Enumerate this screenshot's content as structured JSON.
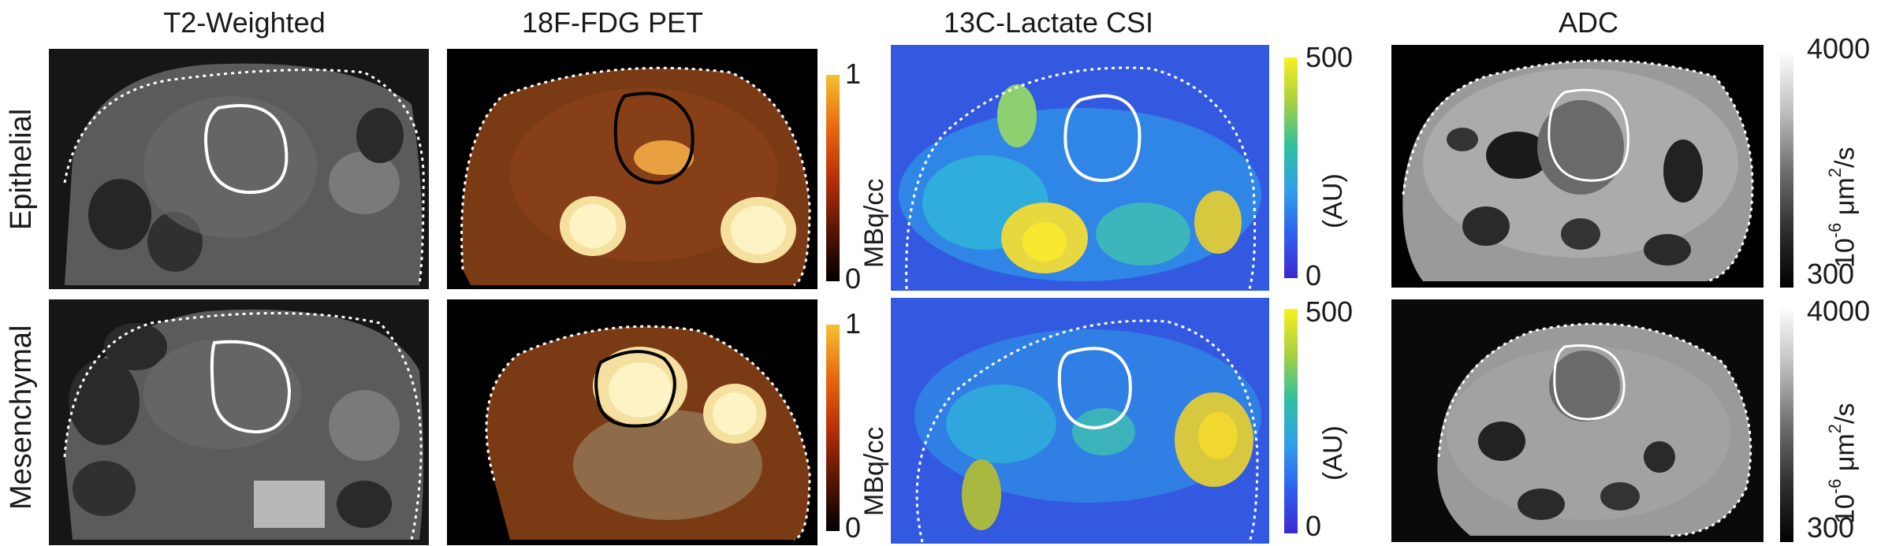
{
  "columns": {
    "t2": "T2-Weighted",
    "pet": "18F-FDG PET",
    "lactate": "13C-Lactate CSI",
    "adc": "ADC"
  },
  "rows": {
    "epithelial": "Epithelial",
    "mesenchymal": "Mesenchymal"
  },
  "colorbars": {
    "pet": {
      "max": "1",
      "min": "0",
      "unit": "MBq/cc"
    },
    "lactate_top": {
      "max": "500",
      "min": "0",
      "unit": "(AU)"
    },
    "lactate_bottom": {
      "max": "500",
      "min": "0",
      "unit": "(AU)"
    },
    "adc": {
      "max": "4000",
      "min": "300",
      "unit_base": "10",
      "unit_exp": "-6",
      "unit_mid": " μm",
      "unit_exp2": "2",
      "unit_tail": "/s"
    }
  }
}
